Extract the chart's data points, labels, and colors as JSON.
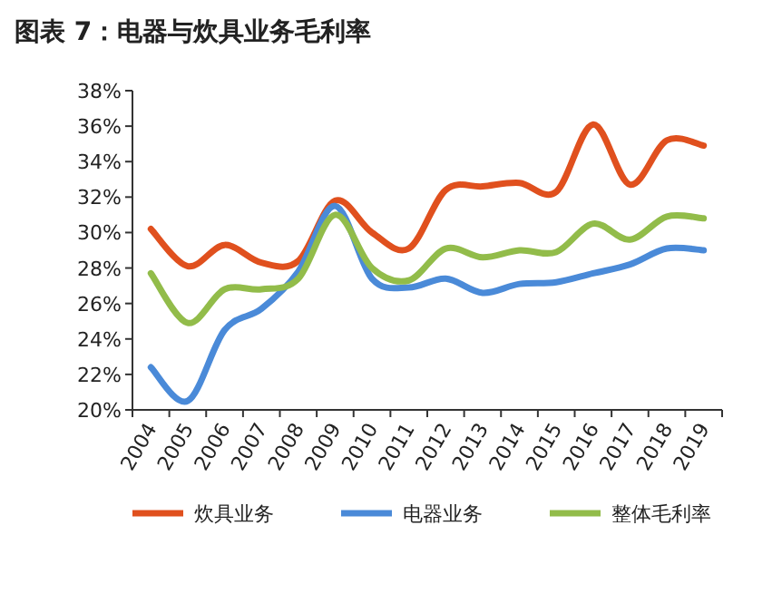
{
  "chart_data": {
    "type": "line",
    "title": "图表 7：电器与炊具业务毛利率",
    "categories": [
      "2004",
      "2005",
      "2006",
      "2007",
      "2008",
      "2009",
      "2010",
      "2011",
      "2012",
      "2013",
      "2014",
      "2015",
      "2016",
      "2017",
      "2018",
      "2019"
    ],
    "series": [
      {
        "name": "炊具业务",
        "color": "#e0501e",
        "values": [
          30.2,
          28.1,
          29.3,
          28.3,
          28.4,
          31.8,
          30.0,
          29.1,
          32.4,
          32.6,
          32.8,
          32.3,
          36.1,
          32.7,
          35.2,
          34.9
        ]
      },
      {
        "name": "电器业务",
        "color": "#4a8ad8",
        "values": [
          22.4,
          20.5,
          24.5,
          25.7,
          27.8,
          31.5,
          27.4,
          26.9,
          27.4,
          26.6,
          27.1,
          27.2,
          27.7,
          28.2,
          29.1,
          29.0
        ]
      },
      {
        "name": "整体毛利率",
        "color": "#92bc4a",
        "values": [
          27.7,
          24.9,
          26.8,
          26.8,
          27.4,
          31.0,
          28.0,
          27.3,
          29.1,
          28.6,
          29.0,
          28.9,
          30.5,
          29.6,
          30.9,
          30.8
        ]
      }
    ],
    "ylim": [
      20,
      38
    ],
    "yticks": [
      {
        "value": 20,
        "label": "20%"
      },
      {
        "value": 22,
        "label": "22%"
      },
      {
        "value": 24,
        "label": "24%"
      },
      {
        "value": 26,
        "label": "26%"
      },
      {
        "value": 28,
        "label": "28%"
      },
      {
        "value": 30,
        "label": "30%"
      },
      {
        "value": 32,
        "label": "32%"
      },
      {
        "value": 34,
        "label": "34%"
      },
      {
        "value": 36,
        "label": "36%"
      },
      {
        "value": 38,
        "label": "38%"
      }
    ],
    "legend": "bottom",
    "grid": false,
    "marker": "none"
  }
}
